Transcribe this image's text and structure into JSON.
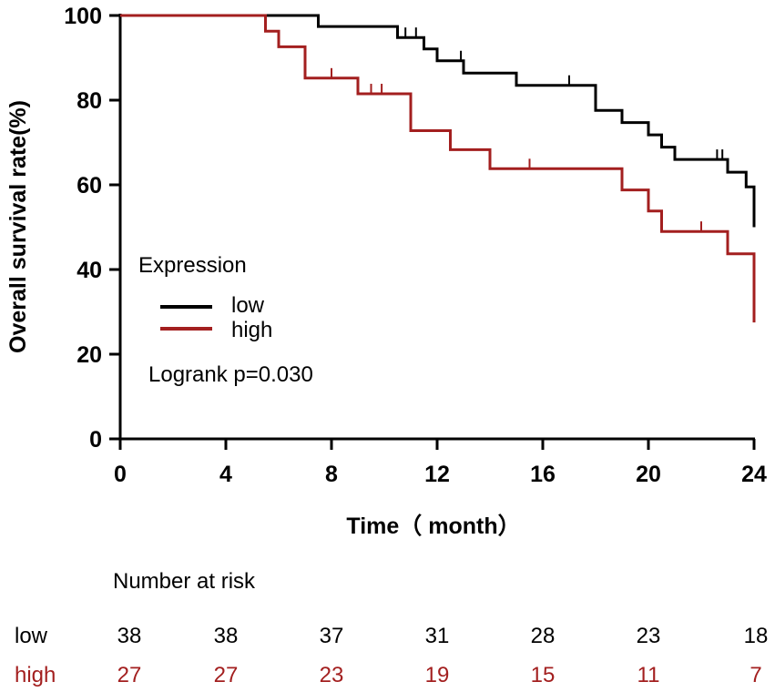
{
  "chart_data": {
    "type": "line",
    "subtype": "kaplan-meier",
    "xlabel": "Time（ month）",
    "ylabel": "Overall survival rate(%)",
    "xlim": [
      0,
      24
    ],
    "ylim": [
      0,
      100
    ],
    "xticks": [
      "0",
      "4",
      "8",
      "12",
      "16",
      "20",
      "24"
    ],
    "yticks": [
      "0",
      "20",
      "40",
      "60",
      "80",
      "100"
    ],
    "legend_title": "Expression",
    "annotation": "Logrank p=0.030",
    "series": [
      {
        "name": "low",
        "color": "#000000",
        "steps": [
          [
            0,
            100
          ],
          [
            7.5,
            100
          ],
          [
            7.5,
            97.4
          ],
          [
            10.5,
            97.4
          ],
          [
            10.5,
            94.8
          ],
          [
            11.5,
            94.8
          ],
          [
            11.5,
            92.1
          ],
          [
            12,
            92.1
          ],
          [
            12,
            89.3
          ],
          [
            13,
            89.3
          ],
          [
            13,
            86.4
          ],
          [
            15,
            86.4
          ],
          [
            15,
            83.5
          ],
          [
            18,
            83.5
          ],
          [
            18,
            77.6
          ],
          [
            19,
            77.6
          ],
          [
            19,
            74.7
          ],
          [
            20,
            74.7
          ],
          [
            20,
            71.8
          ],
          [
            20.5,
            71.8
          ],
          [
            20.5,
            68.9
          ],
          [
            21,
            68.9
          ],
          [
            21,
            66
          ],
          [
            23,
            66
          ],
          [
            23,
            63
          ],
          [
            23.7,
            63
          ],
          [
            23.7,
            59.5
          ],
          [
            24,
            59.5
          ],
          [
            24,
            50
          ]
        ],
        "censors": [
          [
            10.8,
            94.8
          ],
          [
            11.2,
            94.8
          ],
          [
            12.9,
            89.3
          ],
          [
            17,
            83.5
          ],
          [
            22.6,
            66
          ],
          [
            22.8,
            66
          ]
        ]
      },
      {
        "name": "high",
        "color": "#a31f1f",
        "steps": [
          [
            0,
            100
          ],
          [
            5.5,
            100
          ],
          [
            5.5,
            96.3
          ],
          [
            6,
            96.3
          ],
          [
            6,
            92.6
          ],
          [
            7,
            92.6
          ],
          [
            7,
            85.2
          ],
          [
            9,
            85.2
          ],
          [
            9,
            81.5
          ],
          [
            11,
            81.5
          ],
          [
            11,
            72.8
          ],
          [
            12.5,
            72.8
          ],
          [
            12.5,
            68.3
          ],
          [
            14,
            68.3
          ],
          [
            14,
            63.8
          ],
          [
            19,
            63.8
          ],
          [
            19,
            58.8
          ],
          [
            20,
            58.8
          ],
          [
            20,
            53.8
          ],
          [
            20.5,
            53.8
          ],
          [
            20.5,
            49
          ],
          [
            23,
            49
          ],
          [
            23,
            43.7
          ],
          [
            24,
            43.7
          ],
          [
            24,
            27.5
          ]
        ],
        "censors": [
          [
            8,
            85.2
          ],
          [
            9.5,
            81.5
          ],
          [
            9.9,
            81.5
          ],
          [
            15.5,
            63.8
          ],
          [
            22,
            49
          ]
        ]
      }
    ],
    "risk_table": {
      "title": "Number at  risk",
      "times": [
        0,
        4,
        8,
        12,
        16,
        20,
        24
      ],
      "rows": [
        {
          "label": "low",
          "values": [
            "38",
            "38",
            "37",
            "31",
            "28",
            "23",
            "18"
          ],
          "color": "#000000"
        },
        {
          "label": "high",
          "values": [
            "27",
            "27",
            "23",
            "19",
            "15",
            "11",
            "7"
          ],
          "color": "#a31f1f"
        }
      ]
    }
  }
}
